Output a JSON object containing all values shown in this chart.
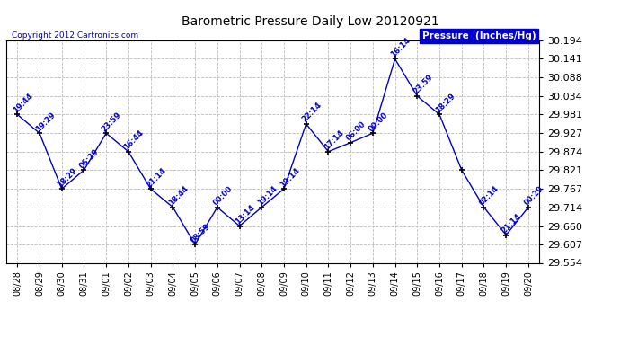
{
  "title": "Barometric Pressure Daily Low 20120921",
  "copyright": "Copyright 2012 Cartronics.com",
  "legend_label": "Pressure  (Inches/Hg)",
  "dates": [
    "08/28",
    "08/29",
    "08/30",
    "08/31",
    "09/01",
    "09/02",
    "09/03",
    "09/04",
    "09/05",
    "09/06",
    "09/07",
    "09/08",
    "09/09",
    "09/10",
    "09/11",
    "09/12",
    "09/13",
    "09/14",
    "09/15",
    "09/16",
    "09/17",
    "09/18",
    "09/19",
    "09/20"
  ],
  "values": [
    29.981,
    29.927,
    29.767,
    29.821,
    29.927,
    29.874,
    29.767,
    29.714,
    29.607,
    29.714,
    29.66,
    29.714,
    29.767,
    29.954,
    29.874,
    29.9,
    29.927,
    30.141,
    30.034,
    29.981,
    29.821,
    29.714,
    29.634,
    29.714
  ],
  "point_labels": [
    "19:44",
    "19:29",
    "18:29",
    "06:29",
    "23:59",
    "16:44",
    "21:14",
    "18:44",
    "08:59",
    "00:00",
    "13:14",
    "19:14",
    "19:14",
    "22:14",
    "17:14",
    "06:00",
    "00:00",
    "16:14",
    "23:59",
    "18:29",
    "...",
    "02:14",
    "21:14",
    "00:29"
  ],
  "line_color": "#0000CC",
  "marker_color": "#000080",
  "label_color": "#0000CC",
  "grid_color": "#BBBBBB",
  "background_color": "#FFFFFF",
  "title_color": "#000000",
  "copyright_color": "#0000CC",
  "legend_box_color": "#0000CC",
  "legend_text_color": "#FFFFFF",
  "ylim": [
    29.554,
    30.194
  ],
  "yticks": [
    29.554,
    29.607,
    29.66,
    29.714,
    29.767,
    29.821,
    29.874,
    29.927,
    29.981,
    30.034,
    30.088,
    30.141,
    30.194
  ]
}
